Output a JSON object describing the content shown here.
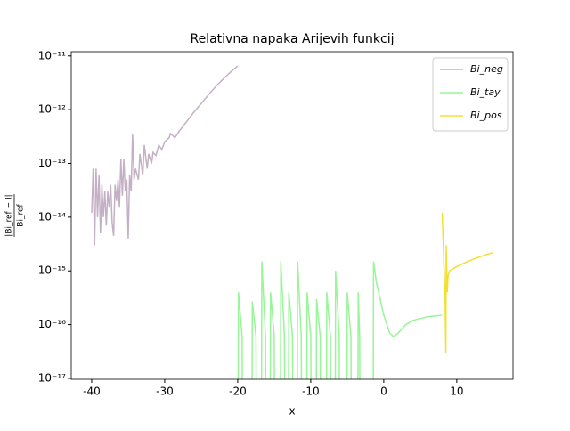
{
  "chart_data": {
    "type": "line",
    "title": "Relativna napaka Arijevih funkcij",
    "xlabel": "x",
    "ylabel": {
      "numerator": "|Bi_ref − I|",
      "denominator": "Bi_ref"
    },
    "log_y": true,
    "grid": false,
    "legend": "upper right",
    "xlim": [
      -42.8,
      17.7
    ],
    "xticks": [
      -40,
      -30,
      -20,
      -10,
      0,
      10
    ],
    "ylim": [
      9.6e-18,
      1.2e-11
    ],
    "yticks": [
      {
        "value": 1e-17,
        "label": "10⁻¹⁷"
      },
      {
        "value": 1e-16,
        "label": "10⁻¹⁶"
      },
      {
        "value": 1e-15,
        "label": "10⁻¹⁵"
      },
      {
        "value": 1e-14,
        "label": "10⁻¹⁴"
      },
      {
        "value": 1e-13,
        "label": "10⁻¹³"
      },
      {
        "value": 1e-12,
        "label": "10⁻¹²"
      },
      {
        "value": 1e-11,
        "label": "10⁻¹¹"
      }
    ],
    "series": [
      {
        "name": "Bi_neg",
        "color": "#c4b0c4",
        "x": [
          -40,
          -39.8,
          -39.6,
          -39.4,
          -39.2,
          -39,
          -38.8,
          -38.6,
          -38.4,
          -38.2,
          -38,
          -37.8,
          -37.6,
          -37.4,
          -37.2,
          -37,
          -36.8,
          -36.6,
          -36.4,
          -36.2,
          -36,
          -35.8,
          -35.6,
          -35.4,
          -35.2,
          -35,
          -34.8,
          -34.6,
          -34.4,
          -34.2,
          -34,
          -33.6,
          -33.4,
          -33,
          -32.8,
          -32.4,
          -32.2,
          -31.8,
          -31.6,
          -31.2,
          -30.8,
          -30.4,
          -30,
          -29.4,
          -29.2,
          -28.6,
          -28,
          -27,
          -26,
          -25,
          -24,
          -23,
          -22,
          -21,
          -20
        ],
        "values": [
          1.2e-14,
          8e-14,
          3e-15,
          8e-14,
          1e-14,
          6e-14,
          5e-15,
          4e-14,
          1e-14,
          3e-14,
          7e-15,
          3e-14,
          1.5e-14,
          4e-14,
          8e-15,
          4.5e-15,
          4e-14,
          2e-14,
          5e-14,
          1.5e-14,
          1.2e-13,
          2.5e-14,
          1.2e-13,
          3e-14,
          5e-14,
          4e-15,
          6e-14,
          3e-14,
          3.5e-13,
          5e-14,
          8e-14,
          5e-14,
          1.5e-13,
          6e-14,
          2.2e-13,
          8e-14,
          1.5e-13,
          1e-13,
          1.6e-13,
          1.4e-13,
          2.2e-13,
          1.8e-13,
          2.5e-13,
          3e-13,
          3.6e-13,
          3e-13,
          4e-13,
          6e-13,
          9e-13,
          1.3e-12,
          1.9e-12,
          2.7e-12,
          3.7e-12,
          5e-12,
          6.5e-12
        ]
      },
      {
        "name": "Bi_tay",
        "color": "#98f598",
        "x": [
          -19.95,
          -19.9,
          -19.4,
          -19.35,
          -18.05,
          -18,
          -17.5,
          -17.45,
          -16.75,
          -16.7,
          -16.2,
          -16.15,
          -15.55,
          -15.5,
          -15,
          -14.95,
          -14.15,
          -14.1,
          -13.6,
          -13.55,
          -13.05,
          -13,
          -12.5,
          -12.45,
          -11.85,
          -11.8,
          -11.3,
          -11.25,
          -10.55,
          -10.5,
          -10,
          -9.95,
          -9.25,
          -9.2,
          -8.7,
          -8.65,
          -7.85,
          -7.8,
          -7.3,
          -7.25,
          -6.65,
          -6.6,
          -6.1,
          -6.05,
          -5.05,
          -5,
          -4.5,
          -4.45,
          -3.55,
          -3.5,
          -3.3,
          -3.25,
          -1.45,
          -1.4,
          -1,
          0,
          0.8,
          1.3,
          2,
          3,
          4,
          5,
          6,
          7,
          8
        ],
        "values": [
          1e-18,
          4e-16,
          6e-17,
          1e-18,
          1e-18,
          2.7e-16,
          6e-17,
          1e-18,
          1e-18,
          1.5e-15,
          6e-17,
          1e-18,
          1e-18,
          4e-16,
          6e-17,
          1e-18,
          1e-18,
          1.5e-15,
          6e-17,
          1e-18,
          1e-18,
          4e-16,
          6e-17,
          1e-18,
          1e-18,
          1.5e-15,
          6e-17,
          1e-18,
          1e-18,
          4e-16,
          6e-17,
          1e-18,
          1e-18,
          3e-16,
          6e-17,
          1e-18,
          1e-18,
          4e-16,
          6e-17,
          1e-18,
          1e-18,
          1e-15,
          6e-17,
          1e-18,
          1e-18,
          4e-16,
          6e-17,
          1e-18,
          1e-18,
          4e-16,
          6e-17,
          1e-18,
          1e-18,
          1.5e-15,
          6e-16,
          1.5e-16,
          7e-17,
          6e-17,
          7e-17,
          1e-16,
          1.2e-16,
          1.3e-16,
          1.4e-16,
          1.45e-16,
          1.5e-16
        ]
      },
      {
        "name": "Bi_pos",
        "color": "#f2e030",
        "x": [
          8,
          8.2,
          8.4,
          8.5,
          8.55,
          8.7,
          8.8,
          9,
          10,
          11,
          12,
          13,
          14,
          15
        ],
        "values": [
          1.2e-14,
          2e-15,
          3e-16,
          3e-17,
          3e-15,
          4e-16,
          8e-16,
          1e-15,
          1.2e-15,
          1.4e-15,
          1.6e-15,
          1.8e-15,
          2e-15,
          2.2e-15
        ]
      }
    ]
  }
}
